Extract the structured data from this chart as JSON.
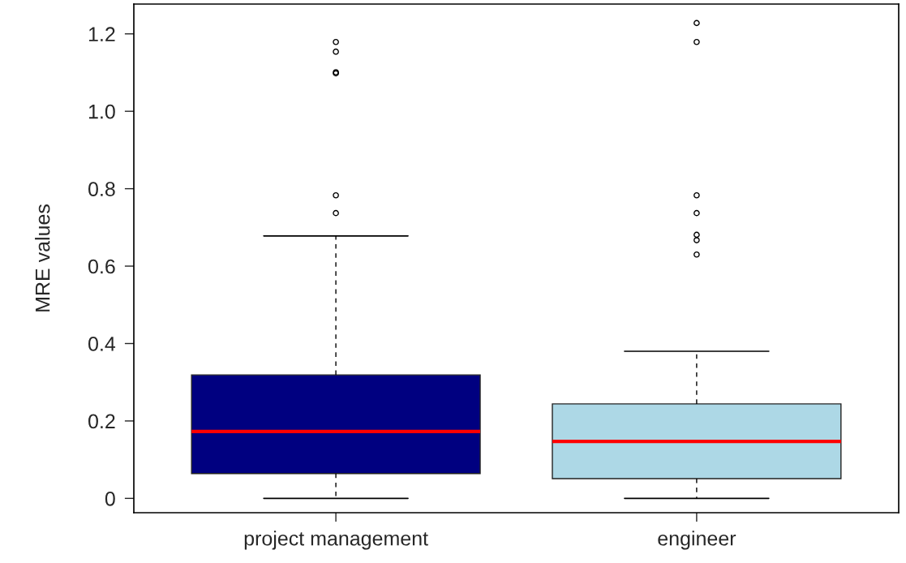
{
  "chart_data": {
    "type": "box",
    "ylabel": "MRE values",
    "categories": [
      "project management",
      "engineer"
    ],
    "colors": [
      "#000080",
      "#add8e6"
    ],
    "boxes": [
      {
        "low": 0,
        "q1": 0.064,
        "median": 0.173,
        "q3": 0.319,
        "high": 0.678,
        "outliers": [
          0.737,
          0.783,
          1.098,
          1.101,
          1.154,
          1.179
        ]
      },
      {
        "low": 0,
        "q1": 0.051,
        "median": 0.147,
        "q3": 0.244,
        "high": 0.38,
        "outliers": [
          0.63,
          0.667,
          0.681,
          0.737,
          0.783,
          1.179,
          1.228
        ]
      }
    ],
    "ylim": [
      -0.037,
      1.277
    ],
    "yticks": [
      0,
      0.2,
      0.4,
      0.6,
      0.8,
      {
        "value": 1,
        "label": "1.0"
      },
      1.2
    ],
    "grid": false
  }
}
